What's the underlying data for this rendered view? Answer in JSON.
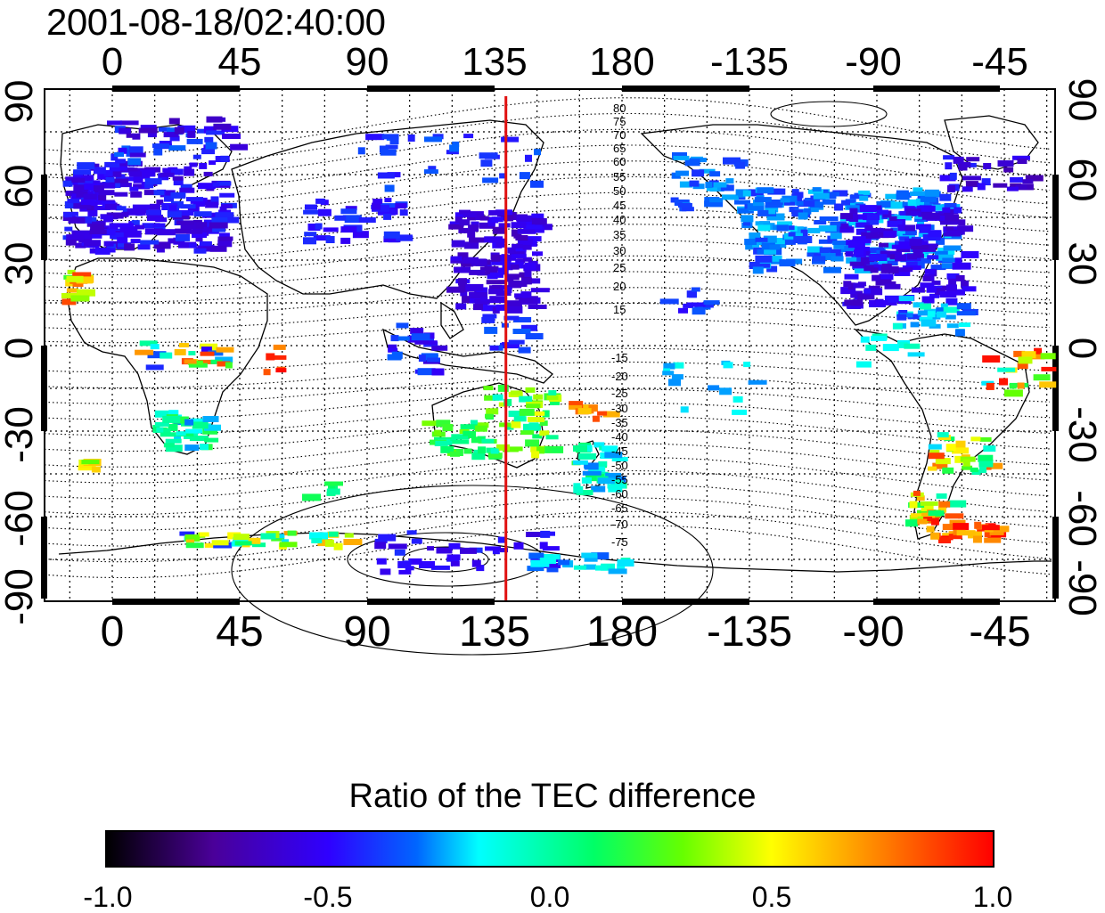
{
  "title": "2001-08-18/02:40:00",
  "axes": {
    "lon_labels": [
      "0",
      "45",
      "90",
      "135",
      "180",
      "-135",
      "-90",
      "-45"
    ],
    "lat_labels": [
      "90",
      "60",
      "30",
      "0",
      "-30",
      "-60",
      "-90"
    ]
  },
  "contour_labels": {
    "north": [
      "80",
      "75",
      "70",
      "65",
      "60",
      "55",
      "50",
      "45",
      "40",
      "35",
      "30",
      "25",
      "20",
      "15"
    ],
    "south": [
      "-15",
      "-20",
      "-25",
      "-30",
      "-35",
      "-40",
      "-45",
      "-50",
      "-55",
      "-60",
      "-65",
      "-70",
      "-75"
    ]
  },
  "marker": {
    "longitude": 139,
    "color": "#e01010"
  },
  "colorbar": {
    "title": "Ratio of the TEC difference",
    "ticks": [
      "-1.0",
      "-0.5",
      "0.0",
      "0.5",
      "1.0"
    ]
  }
}
